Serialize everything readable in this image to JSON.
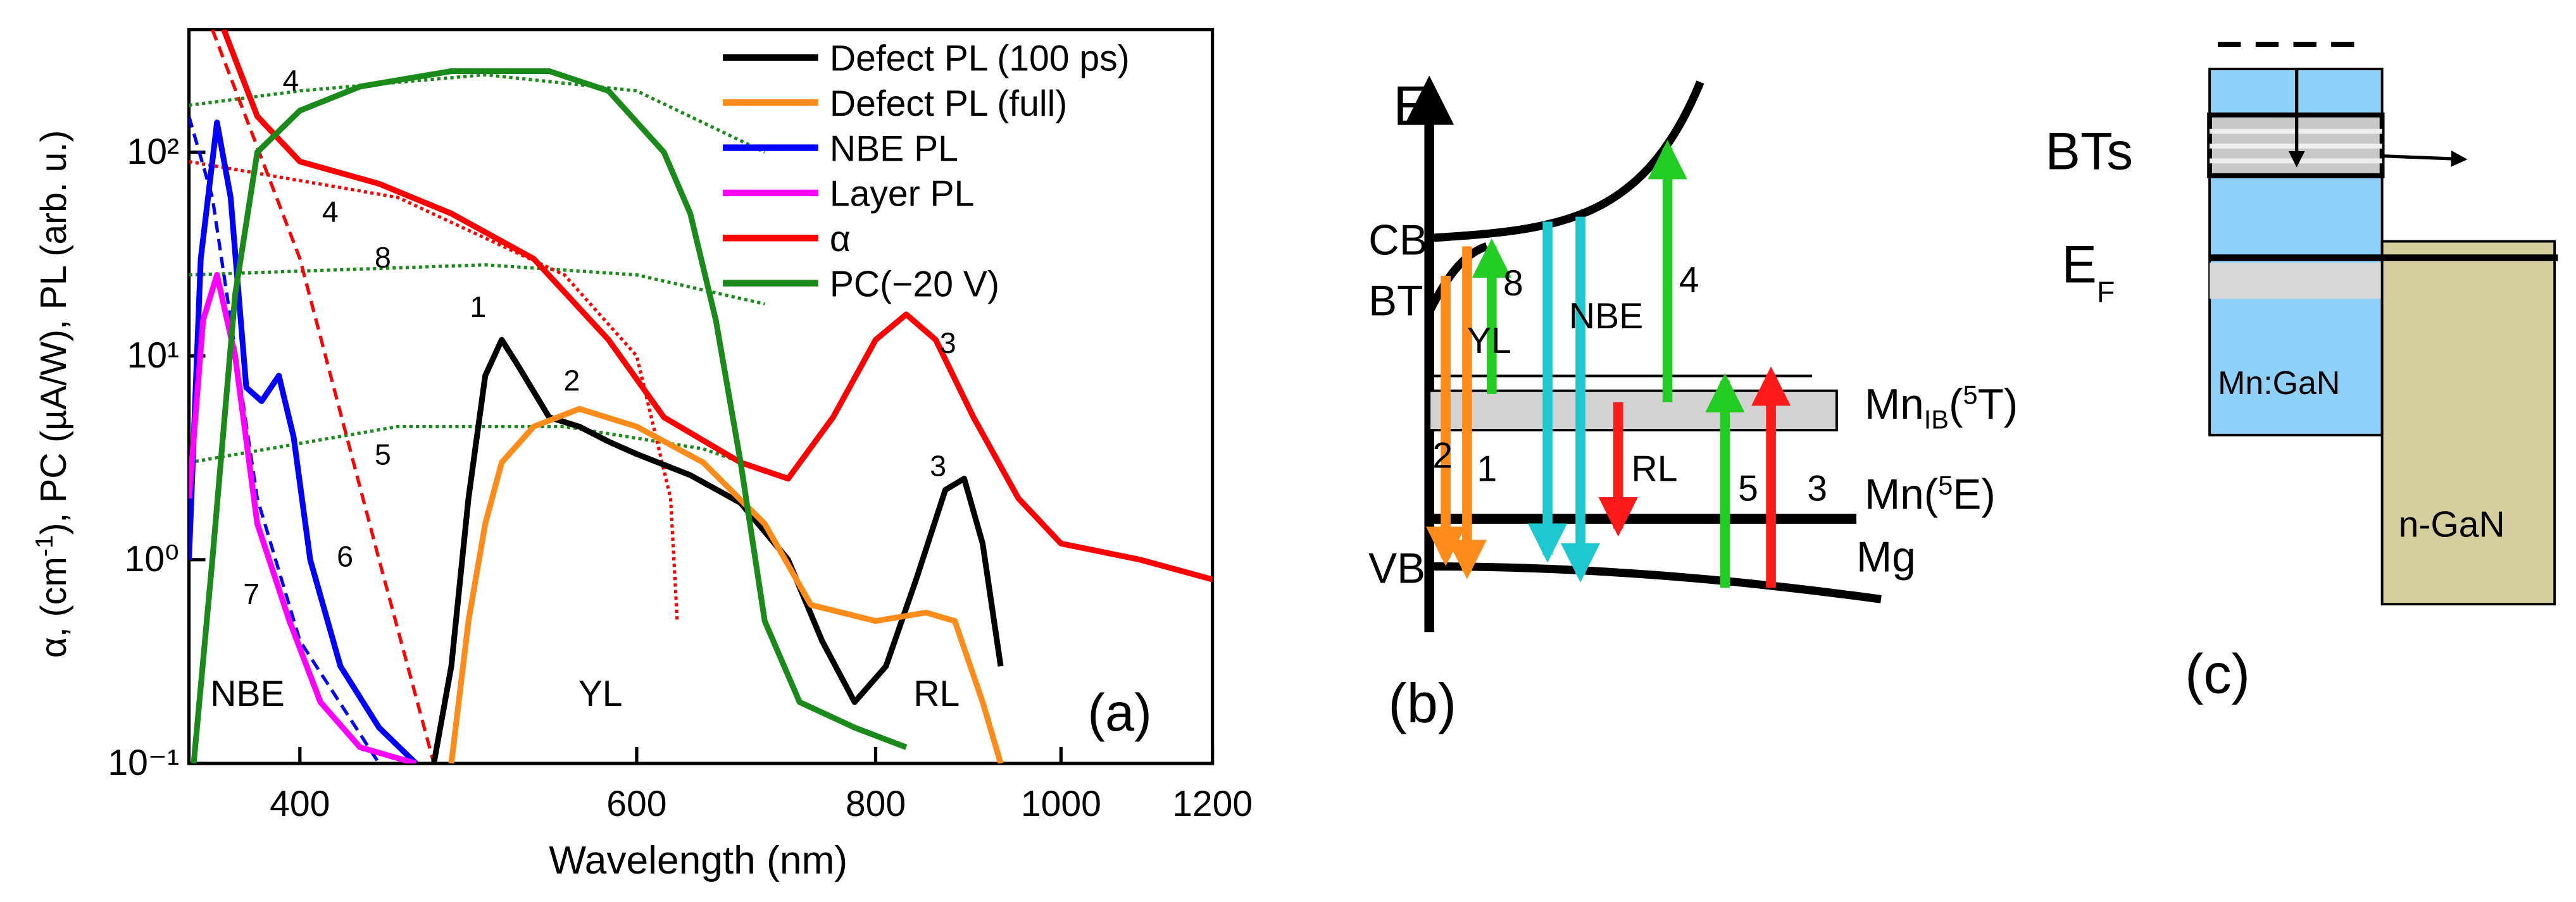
{
  "chart_data": {
    "type": "line",
    "xlabel": "Wavelength (nm)",
    "ylabel_parts": [
      "α, (cm",
      "-1",
      "), PC (µA/W), PL (arb. u.)"
    ],
    "xscale": "log",
    "yscale": "log",
    "xlim": [
      350,
      1200
    ],
    "ylim": [
      0.1,
      400
    ],
    "xticks": [
      400,
      600,
      800,
      1000,
      1200
    ],
    "yticks": [
      {
        "value": 0.1,
        "label": "10⁻¹"
      },
      {
        "value": 1,
        "label": "10⁰"
      },
      {
        "value": 10,
        "label": "10¹"
      },
      {
        "value": 100,
        "label": "10²"
      }
    ],
    "legend": "upper right",
    "series": [
      {
        "name": "Defect PL (100 ps)",
        "color": "#000000",
        "x": [
          470,
          480,
          490,
          500,
          510,
          520,
          540,
          560,
          580,
          600,
          640,
          680,
          720,
          750,
          780,
          810,
          840,
          870,
          890,
          910,
          930
        ],
        "values": [
          0.1,
          0.3,
          2,
          8,
          12,
          9,
          5,
          4.5,
          3.8,
          3.3,
          2.6,
          1.9,
          1.0,
          0.4,
          0.2,
          0.3,
          0.8,
          2.2,
          2.5,
          1.2,
          0.3
        ]
      },
      {
        "name": "Defect PL (full)",
        "color": "#ff8c1a",
        "x": [
          480,
          490,
          500,
          510,
          530,
          560,
          600,
          650,
          700,
          740,
          800,
          850,
          880,
          910,
          930
        ],
        "values": [
          0.1,
          0.5,
          1.5,
          3,
          4.5,
          5.5,
          4.5,
          3,
          1.5,
          0.6,
          0.5,
          0.55,
          0.5,
          0.2,
          0.1
        ]
      },
      {
        "name": "NBE PL",
        "color": "#0000ff",
        "x": [
          350,
          355,
          362,
          368,
          375,
          382,
          390,
          397,
          405,
          420,
          440,
          460
        ],
        "values": [
          1,
          30,
          140,
          60,
          7,
          6,
          8,
          4,
          1,
          0.3,
          0.15,
          0.1
        ]
      },
      {
        "name": "Layer PL",
        "color": "#ff00ff",
        "x": [
          350,
          356,
          362,
          370,
          380,
          395,
          410,
          430,
          460
        ],
        "values": [
          2,
          15,
          25,
          10,
          1.5,
          0.5,
          0.2,
          0.12,
          0.1
        ]
      },
      {
        "name": "α",
        "color": "#ff0000",
        "x": [
          365,
          380,
          400,
          440,
          480,
          530,
          580,
          620,
          680,
          720,
          760,
          800,
          830,
          860,
          900,
          950,
          1000,
          1100,
          1200
        ],
        "values": [
          400,
          150,
          90,
          70,
          50,
          30,
          12,
          5,
          3,
          2.5,
          5,
          12,
          16,
          12,
          5,
          2,
          1.2,
          1,
          0.8
        ]
      },
      {
        "name": "PC(−20 V)",
        "color": "#1a8a1a",
        "x": [
          352,
          360,
          370,
          380,
          400,
          430,
          480,
          540,
          580,
          620,
          640,
          660,
          680,
          700,
          730,
          780,
          830
        ],
        "values": [
          0.1,
          1,
          20,
          100,
          160,
          210,
          250,
          250,
          200,
          100,
          50,
          15,
          3,
          0.5,
          0.2,
          0.15,
          0.12
        ]
      }
    ],
    "fits": [
      {
        "label": "4",
        "color": "#1a8a1a",
        "style": "dotted",
        "x": [
          350,
          400,
          500,
          600,
          700
        ],
        "values": [
          170,
          200,
          240,
          200,
          100
        ]
      },
      {
        "label": "8",
        "color": "#1a8a1a",
        "style": "dotted",
        "x": [
          350,
          500,
          600,
          700
        ],
        "values": [
          25,
          28,
          25,
          18
        ]
      },
      {
        "label": "5",
        "color": "#1a8a1a",
        "style": "dotted",
        "x": [
          350,
          450,
          550,
          650,
          720
        ],
        "values": [
          3,
          4.5,
          4.5,
          3.5,
          2.5
        ]
      },
      {
        "label": "4",
        "color": "#ff0000",
        "style": "dotted",
        "x": [
          350,
          450,
          550,
          600,
          625,
          630
        ],
        "values": [
          90,
          60,
          25,
          10,
          2,
          0.5
        ]
      },
      {
        "label": "6",
        "color": "#ff0000",
        "style": "dashed",
        "x": [
          360,
          400,
          440,
          470
        ],
        "values": [
          400,
          30,
          1,
          0.1
        ]
      },
      {
        "label": "7",
        "color": "#0000ff",
        "style": "dashed",
        "x": [
          350,
          360,
          380,
          400,
          440
        ],
        "values": [
          150,
          60,
          2,
          0.4,
          0.1
        ]
      }
    ],
    "annotations": [
      "1",
      "2",
      "3",
      "3",
      "NBE",
      "YL",
      "RL",
      "(a)"
    ]
  },
  "diagram_b": {
    "axis": "E",
    "CB": "CB",
    "BT": "BT",
    "YL": "YL",
    "n8": "8",
    "NBE": "NBE",
    "n4": "4",
    "MnIB_parts": [
      "Mn",
      "IB",
      "(",
      "5",
      "T)"
    ],
    "n2": "2",
    "n1": "1",
    "RL": "RL",
    "n5": "5",
    "n3": "3",
    "Mn5E_parts": [
      "Mn(",
      "5",
      "E)"
    ],
    "VB": "VB",
    "Mg": "Mg",
    "panel": "(b)"
  },
  "diagram_c": {
    "BTs": "BTs",
    "EF_parts": [
      "E",
      "F"
    ],
    "left": "Mn:GaN",
    "right": "n-GaN",
    "panel": "(c)"
  }
}
